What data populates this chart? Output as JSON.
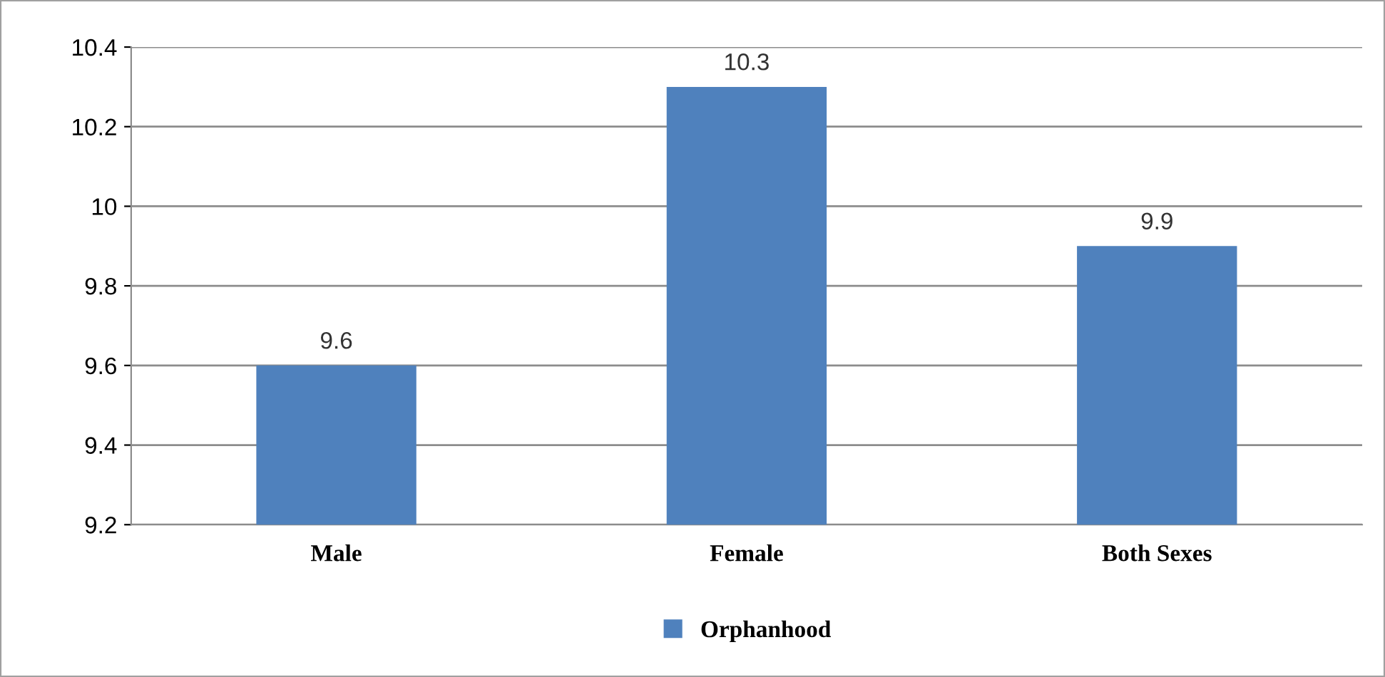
{
  "chart_data": {
    "type": "bar",
    "categories": [
      "Male",
      "Female",
      "Both Sexes"
    ],
    "series": [
      {
        "name": "Orphanhood",
        "color": "#4f81bd",
        "values": [
          9.6,
          10.3,
          9.9
        ]
      }
    ],
    "ylim": [
      9.2,
      10.4
    ],
    "yticks": [
      9.2,
      9.4,
      9.6,
      9.8,
      10,
      10.2,
      10.4
    ],
    "grid": "y",
    "legend": "bottom",
    "data_labels": true
  }
}
